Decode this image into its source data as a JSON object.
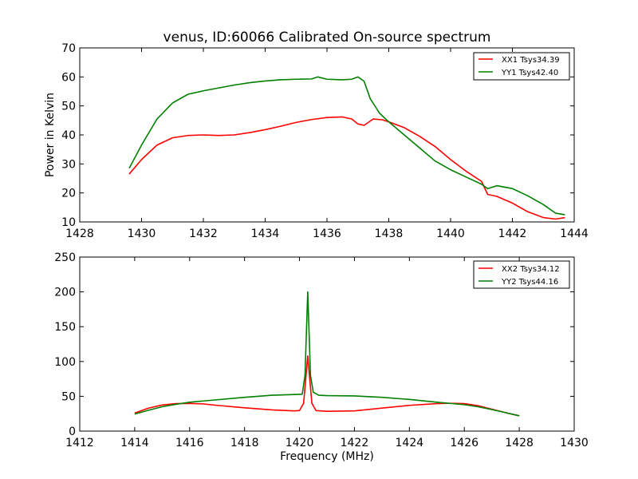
{
  "title": "venus, ID:60066 Calibrated On-source spectrum",
  "chart_data": [
    {
      "type": "line",
      "ylabel": "Power in Kelvin",
      "xlabel": "",
      "xlim": [
        1428,
        1444
      ],
      "ylim": [
        10,
        70
      ],
      "xticks": [
        1428,
        1430,
        1432,
        1434,
        1436,
        1438,
        1440,
        1442,
        1444
      ],
      "yticks": [
        10,
        20,
        30,
        40,
        50,
        60,
        70
      ],
      "grid": false,
      "legend": "top-right",
      "series": [
        {
          "name": "XX1 Tsys34.39",
          "color": "#ff0000",
          "x": [
            1429.6,
            1430.0,
            1430.5,
            1431.0,
            1431.5,
            1432.0,
            1432.5,
            1433.0,
            1433.5,
            1434.0,
            1434.5,
            1435.0,
            1435.5,
            1436.0,
            1436.5,
            1436.8,
            1437.0,
            1437.2,
            1437.5,
            1437.8,
            1438.0,
            1438.5,
            1439.0,
            1439.5,
            1440.0,
            1440.5,
            1441.0,
            1441.2,
            1441.5,
            1442.0,
            1442.5,
            1443.0,
            1443.4,
            1443.7
          ],
          "y": [
            26.5,
            31.5,
            36.5,
            39.0,
            39.8,
            40.0,
            39.8,
            40.0,
            40.8,
            41.8,
            43.0,
            44.3,
            45.3,
            46.0,
            46.2,
            45.5,
            43.8,
            43.3,
            45.5,
            45.2,
            44.5,
            42.5,
            39.5,
            36.0,
            31.5,
            27.5,
            24.0,
            19.5,
            18.8,
            16.5,
            13.5,
            11.5,
            11.0,
            11.5
          ]
        },
        {
          "name": "YY1 Tsys42.40",
          "color": "#008000",
          "x": [
            1429.6,
            1430.0,
            1430.5,
            1431.0,
            1431.5,
            1432.0,
            1432.5,
            1433.0,
            1433.5,
            1434.0,
            1434.5,
            1435.0,
            1435.5,
            1435.7,
            1436.0,
            1436.5,
            1436.8,
            1437.0,
            1437.2,
            1437.4,
            1437.7,
            1438.0,
            1438.5,
            1439.0,
            1439.5,
            1440.0,
            1440.5,
            1441.0,
            1441.2,
            1441.5,
            1442.0,
            1442.5,
            1443.0,
            1443.4,
            1443.7
          ],
          "y": [
            28.5,
            36.5,
            45.5,
            51.0,
            54.0,
            55.2,
            56.2,
            57.2,
            58.0,
            58.6,
            59.0,
            59.2,
            59.3,
            60.0,
            59.2,
            59.0,
            59.2,
            60.0,
            58.5,
            52.5,
            47.5,
            44.5,
            40.0,
            35.5,
            31.0,
            28.0,
            25.5,
            23.0,
            21.5,
            22.5,
            21.5,
            19.0,
            16.0,
            13.0,
            12.5
          ]
        }
      ]
    },
    {
      "type": "line",
      "xlabel": "Frequency (MHz)",
      "ylabel": "",
      "xlim": [
        1412,
        1430
      ],
      "ylim": [
        0,
        250
      ],
      "xticks": [
        1412,
        1414,
        1416,
        1418,
        1420,
        1422,
        1424,
        1426,
        1428,
        1430
      ],
      "yticks": [
        0,
        50,
        100,
        150,
        200,
        250
      ],
      "grid": false,
      "legend": "top-right",
      "series": [
        {
          "name": "XX2 Tsys34.12",
          "color": "#ff0000",
          "x": [
            1414.0,
            1414.5,
            1415.0,
            1415.5,
            1416.0,
            1416.5,
            1417.0,
            1418.0,
            1419.0,
            1419.8,
            1420.0,
            1420.15,
            1420.3,
            1420.45,
            1420.6,
            1421.0,
            1422.0,
            1423.0,
            1424.0,
            1425.0,
            1425.5,
            1426.0,
            1426.5,
            1427.0,
            1427.5,
            1428.0
          ],
          "y": [
            26.0,
            33.0,
            37.5,
            39.5,
            39.8,
            39.0,
            37.0,
            33.5,
            30.5,
            29.0,
            29.5,
            40.0,
            108.0,
            40.0,
            29.5,
            28.5,
            29.0,
            33.0,
            37.0,
            39.5,
            40.0,
            39.5,
            36.5,
            31.5,
            26.5,
            22.0
          ]
        },
        {
          "name": "YY2 Tsys44.16",
          "color": "#008000",
          "x": [
            1414.0,
            1414.5,
            1415.0,
            1415.5,
            1416.0,
            1417.0,
            1418.0,
            1419.0,
            1419.8,
            1420.1,
            1420.2,
            1420.3,
            1420.4,
            1420.5,
            1420.7,
            1421.0,
            1422.0,
            1423.0,
            1424.0,
            1425.0,
            1426.0,
            1426.5,
            1427.0,
            1427.5,
            1428.0
          ],
          "y": [
            24.5,
            30.0,
            35.0,
            38.5,
            41.5,
            45.0,
            48.5,
            51.5,
            52.5,
            53.0,
            80.0,
            200.0,
            80.0,
            56.0,
            51.5,
            51.0,
            50.5,
            48.5,
            45.5,
            41.5,
            38.0,
            35.0,
            31.0,
            26.5,
            22.0
          ]
        }
      ]
    }
  ]
}
